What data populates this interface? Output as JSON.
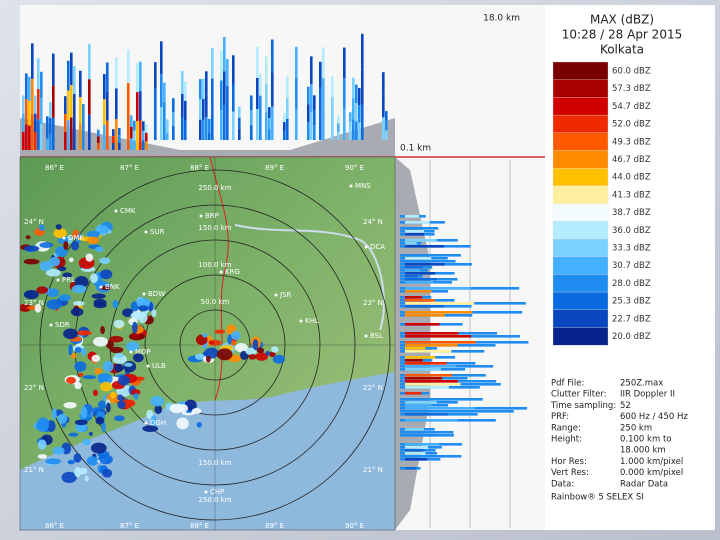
{
  "header": {
    "title": "MAX (dBZ)",
    "time": "10:28 / 28 Apr 2015",
    "site": "Kolkata"
  },
  "cross_section": {
    "top_height": "18.0 km",
    "bottom_height": "0.1 km"
  },
  "legend": {
    "labels": [
      "60.0 dBZ",
      "57.3 dBZ",
      "54.7 dBZ",
      "52.0 dBZ",
      "49.3 dBZ",
      "46.7 dBZ",
      "44.0 dBZ",
      "41.3 dBZ",
      "38.7 dBZ",
      "36.0 dBZ",
      "33.3 dBZ",
      "30.7 dBZ",
      "28.0 dBZ",
      "25.3 dBZ",
      "22.7 dBZ",
      "20.0 dBZ"
    ],
    "colors": [
      "#7a0000",
      "#a80000",
      "#d00000",
      "#f02a00",
      "#ff5a00",
      "#ff8c00",
      "#ffc000",
      "#fff0a0",
      "#f4fbff",
      "#b4ecff",
      "#7ad2ff",
      "#44b0ff",
      "#1e8cf0",
      "#0a6ae0",
      "#0a46c0",
      "#06248c"
    ]
  },
  "map": {
    "lon_top": [
      "86° E",
      "87° E",
      "88° E",
      "89° E",
      "90° E"
    ],
    "lon_bottom": [
      "86° E",
      "87° E",
      "88° E",
      "89° E",
      "90° E"
    ],
    "lat_left": [
      "24° N",
      "23° N",
      "22° N",
      "21° N"
    ],
    "lat_right": [
      "24° N",
      "23° N",
      "22° N",
      "21° N"
    ],
    "rings": [
      "250.0 km",
      "150.0 km",
      "100.0 km",
      "50.0 km",
      "150.0 km",
      "250.0 km"
    ],
    "stations": [
      "MNS",
      "CMK",
      "BRP",
      "SUR",
      "DMK",
      "DCA",
      "PRL",
      "BNK",
      "KRG",
      "BDW",
      "JSR",
      "SDR",
      "KHL",
      "MDP",
      "BSL",
      "ULB",
      "DGH",
      "CHP"
    ]
  },
  "info": [
    {
      "key": "Pdf File:",
      "value": "250Z.max"
    },
    {
      "key": "Clutter Filter:",
      "value": "IIR Doppler II"
    },
    {
      "key": "Time sampling:",
      "value": "52"
    },
    {
      "key": "PRF:",
      "value": "600 Hz / 450 Hz"
    },
    {
      "key": "Range:",
      "value": "250 km"
    },
    {
      "key": "Height:",
      "value": "0.100 km to"
    },
    {
      "key": "",
      "value": "18.000 km"
    },
    {
      "key": "Hor Res:",
      "value": "1.000 km/pixel"
    },
    {
      "key": "Vert Res:",
      "value": "0.000 km/pixel"
    },
    {
      "key": "Data:",
      "value": "Radar Data"
    }
  ],
  "footer": "Rainbow® 5 SELEX SI"
}
